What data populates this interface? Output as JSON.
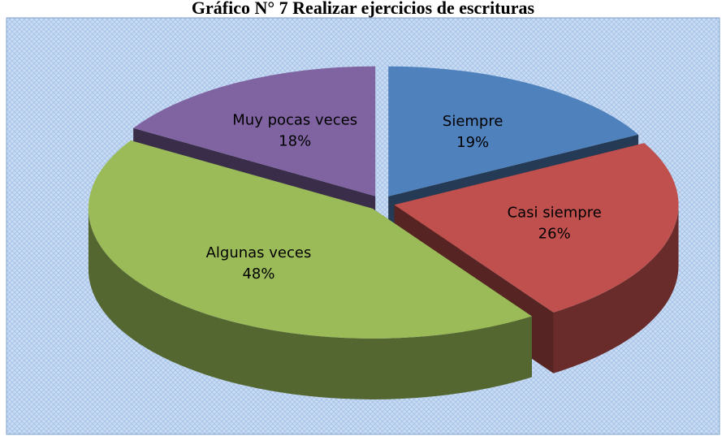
{
  "chart_data": {
    "type": "pie",
    "title": "Gráfico N° 7 Realizar ejercicios de escrituras",
    "categories": [
      "Siempre",
      "Casi siempre",
      "Algunas veces",
      "Muy pocas veces"
    ],
    "values": [
      19,
      26,
      48,
      18
    ],
    "value_labels": [
      "19%",
      "26%",
      "48%",
      "18%"
    ],
    "colors": [
      "#4f81bd",
      "#c0504d",
      "#9bbb59",
      "#8064a2"
    ]
  }
}
